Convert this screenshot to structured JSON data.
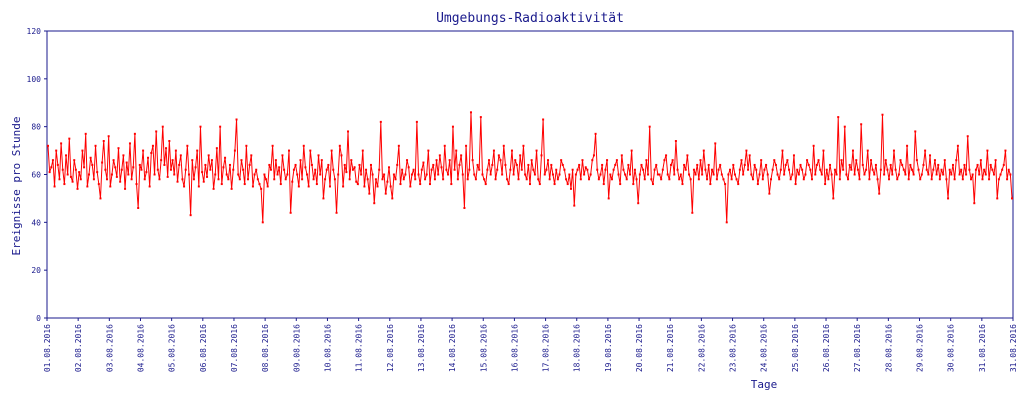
{
  "chart_data": {
    "type": "line",
    "title": "Umgebungs-Radioaktivität",
    "xlabel": "Tage",
    "ylabel": "Ereignisse pro Stunde",
    "ylim": [
      0,
      120
    ],
    "yticks": [
      0,
      20,
      40,
      60,
      80,
      100,
      120
    ],
    "xticks": [
      "01.08.2016",
      "02.08.2016",
      "03.08.2016",
      "04.08.2016",
      "05.08.2016",
      "06.08.2016",
      "07.08.2016",
      "08.08.2016",
      "09.08.2016",
      "10.08.2016",
      "11.08.2016",
      "12.08.2016",
      "13.08.2016",
      "14.08.2016",
      "15.08.2016",
      "16.08.2016",
      "17.08.2016",
      "18.08.2016",
      "19.08.2016",
      "20.08.2016",
      "21.08.2016",
      "22.08.2016",
      "23.08.2016",
      "24.08.2016",
      "25.08.2016",
      "26.08.2016",
      "27.08.2016",
      "28.08.2016",
      "29.08.2016",
      "30.08.2016",
      "31.08.2016",
      "31.08.2016"
    ],
    "grid": false,
    "series_color": "#ff0000",
    "series": [
      {
        "values": [
          72,
          61,
          63,
          66,
          55,
          70,
          64,
          58,
          73,
          62,
          56,
          68,
          60,
          75,
          59,
          57,
          66,
          62,
          54,
          61,
          58,
          70,
          63,
          77,
          55,
          60,
          67,
          64,
          58,
          72,
          61,
          56,
          50,
          65,
          74,
          62,
          58,
          76,
          55,
          60,
          66,
          63,
          59,
          71,
          57,
          62,
          68,
          54,
          65,
          60,
          73,
          58,
          63,
          77,
          56,
          46,
          64,
          62,
          70,
          58,
          61,
          67,
          55,
          69,
          72,
          60,
          78,
          62,
          58,
          66,
          80,
          64,
          71,
          59,
          74,
          62,
          66,
          60,
          70,
          57,
          64,
          68,
          58,
          55,
          62,
          72,
          60,
          43,
          66,
          58,
          63,
          70,
          55,
          80,
          61,
          57,
          64,
          59,
          68,
          62,
          66,
          54,
          60,
          71,
          58,
          80,
          56,
          63,
          67,
          60,
          58,
          64,
          54,
          62,
          70,
          83,
          60,
          58,
          66,
          62,
          56,
          72,
          58,
          64,
          68,
          55,
          60,
          62,
          58,
          56,
          54,
          40,
          60,
          58,
          55,
          64,
          62,
          72,
          58,
          66,
          60,
          63,
          56,
          68,
          62,
          58,
          60,
          70,
          44,
          57,
          62,
          64,
          60,
          55,
          66,
          58,
          72,
          63,
          60,
          55,
          70,
          64,
          58,
          62,
          56,
          68,
          60,
          66,
          50,
          58,
          62,
          64,
          55,
          70,
          62,
          58,
          44,
          60,
          72,
          68,
          55,
          64,
          61,
          78,
          58,
          66,
          62,
          63,
          57,
          56,
          64,
          60,
          70,
          55,
          62,
          58,
          52,
          64,
          60,
          48,
          58,
          55,
          62,
          82,
          58,
          60,
          52,
          57,
          63,
          55,
          50,
          60,
          58,
          64,
          72,
          56,
          62,
          58,
          60,
          66,
          63,
          55,
          60,
          62,
          58,
          82,
          60,
          56,
          62,
          65,
          58,
          60,
          70,
          56,
          62,
          64,
          58,
          66,
          60,
          68,
          63,
          58,
          72,
          62,
          60,
          66,
          56,
          80,
          62,
          70,
          58,
          64,
          68,
          60,
          46,
          72,
          58,
          62,
          86,
          66,
          60,
          58,
          64,
          62,
          84,
          60,
          58,
          56,
          62,
          66,
          60,
          64,
          70,
          58,
          62,
          68,
          66,
          60,
          72,
          64,
          58,
          56,
          62,
          70,
          60,
          66,
          64,
          58,
          68,
          62,
          72,
          60,
          58,
          64,
          56,
          66,
          62,
          60,
          70,
          58,
          56,
          68,
          83,
          60,
          62,
          66,
          58,
          64,
          60,
          56,
          62,
          58,
          60,
          66,
          64,
          62,
          58,
          56,
          60,
          54,
          62,
          47,
          60,
          62,
          64,
          58,
          66,
          60,
          63,
          62,
          58,
          60,
          66,
          68,
          77,
          62,
          58,
          60,
          64,
          56,
          62,
          66,
          50,
          60,
          58,
          62,
          64,
          66,
          60,
          56,
          68,
          62,
          60,
          58,
          64,
          60,
          70,
          56,
          62,
          58,
          48,
          60,
          64,
          62,
          58,
          66,
          60,
          80,
          58,
          56,
          62,
          64,
          60,
          60,
          58,
          62,
          66,
          68,
          60,
          58,
          64,
          66,
          60,
          74,
          62,
          58,
          60,
          56,
          64,
          62,
          68,
          60,
          58,
          44,
          62,
          60,
          64,
          58,
          66,
          60,
          70,
          62,
          58,
          64,
          56,
          62,
          60,
          73,
          58,
          62,
          64,
          60,
          58,
          56,
          40,
          60,
          62,
          58,
          64,
          60,
          58,
          56,
          62,
          66,
          60,
          64,
          70,
          62,
          68,
          60,
          58,
          64,
          62,
          56,
          60,
          66,
          58,
          62,
          64,
          60,
          52,
          58,
          62,
          66,
          64,
          60,
          58,
          62,
          70,
          60,
          64,
          66,
          62,
          58,
          60,
          68,
          56,
          62,
          60,
          64,
          62,
          58,
          60,
          66,
          64,
          62,
          58,
          72,
          60,
          64,
          66,
          62,
          60,
          70,
          56,
          62,
          58,
          64,
          60,
          50,
          62,
          60,
          84,
          58,
          66,
          62,
          80,
          60,
          58,
          64,
          62,
          70,
          60,
          66,
          62,
          58,
          81,
          64,
          60,
          62,
          70,
          58,
          66,
          62,
          60,
          64,
          58,
          52,
          62,
          85,
          60,
          66,
          62,
          58,
          64,
          60,
          70,
          62,
          58,
          60,
          66,
          64,
          62,
          60,
          72,
          58,
          64,
          62,
          60,
          78,
          66,
          62,
          58,
          60,
          64,
          70,
          62,
          60,
          68,
          58,
          62,
          66,
          60,
          64,
          58,
          62,
          60,
          66,
          58,
          50,
          62,
          60,
          64,
          58,
          66,
          72,
          60,
          62,
          58,
          64,
          60,
          76,
          62,
          58,
          60,
          48,
          62,
          64,
          60,
          66,
          58,
          62,
          60,
          70,
          58,
          64,
          62,
          60,
          66,
          50,
          58,
          60,
          62,
          64,
          70,
          58,
          62,
          60,
          50
        ]
      }
    ]
  }
}
